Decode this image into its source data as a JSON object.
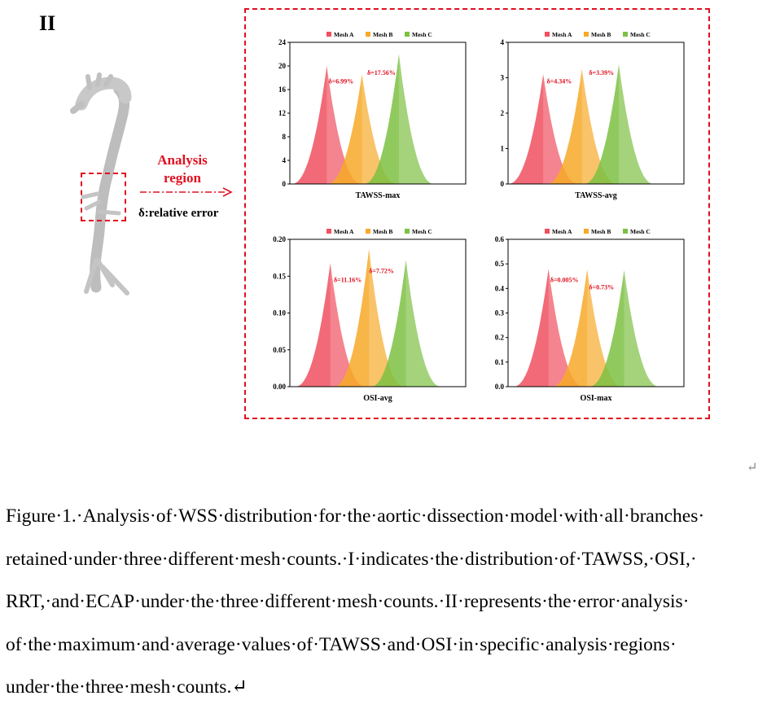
{
  "figure": {
    "panel_label": "II",
    "analysis_label_line1": "Analysis",
    "analysis_label_line2": "region",
    "delta_label": "δ:relative error",
    "caption": "Figure·1.·Analysis·of·WSS·distribution·for·the·aortic·dissection·model·with·all·branches·\nretained·under·three·different·mesh·counts.·I·indicates·the·distribution·of·TAWSS,·OSI,·\nRRT,·and·ECAP·under·the·three·different·mesh·counts.·II·represents·the·error·analysis·\nof·the·maximum·and·average·values·of·TAWSS·and·OSI·in·specific·analysis·regions·\nunder·the·three·mesh·counts.↵",
    "return_mark": "↵"
  },
  "colors": {
    "mesh_a": "#f0505f",
    "mesh_b": "#f7a928",
    "mesh_c": "#7cc143",
    "annotation": "#e01020",
    "frame": "#e01020"
  },
  "chart_data": [
    {
      "type": "area",
      "title": "TAWSS-max",
      "legend": [
        "Mesh A",
        "Mesh B",
        "Mesh C"
      ],
      "ylim": [
        0,
        24
      ],
      "yticks": [
        "0",
        "4",
        "8",
        "12",
        "16",
        "20",
        "24"
      ],
      "peaks": [
        20,
        18.6,
        22
      ],
      "annotations": [
        "δ=6.99%",
        "δ=17.56%"
      ]
    },
    {
      "type": "area",
      "title": "TAWSS-avg",
      "legend": [
        "Mesh A",
        "Mesh B",
        "Mesh C"
      ],
      "ylim": [
        0,
        4
      ],
      "yticks": [
        "0",
        "1",
        "2",
        "3",
        "4"
      ],
      "peaks": [
        3.1,
        3.25,
        3.38
      ],
      "annotations": [
        "δ=4.34%",
        "δ=3.39%"
      ]
    },
    {
      "type": "area",
      "title": "OSI-avg",
      "legend": [
        "Mesh A",
        "Mesh B",
        "Mesh C"
      ],
      "ylim": [
        0,
        0.2
      ],
      "yticks": [
        "0.00",
        "0.05",
        "0.10",
        "0.15",
        "0.20"
      ],
      "peaks": [
        0.168,
        0.187,
        0.172
      ],
      "annotations": [
        "δ=11.16%",
        "δ=7.72%"
      ]
    },
    {
      "type": "area",
      "title": "OSI-max",
      "legend": [
        "Mesh A",
        "Mesh B",
        "Mesh C"
      ],
      "ylim": [
        0,
        0.6
      ],
      "yticks": [
        "0.0",
        "0.1",
        "0.2",
        "0.3",
        "0.4",
        "0.5",
        "0.6"
      ],
      "peaks": [
        0.48,
        0.478,
        0.475
      ],
      "annotations": [
        "δ=0.005%",
        "δ=0.73%"
      ]
    }
  ]
}
